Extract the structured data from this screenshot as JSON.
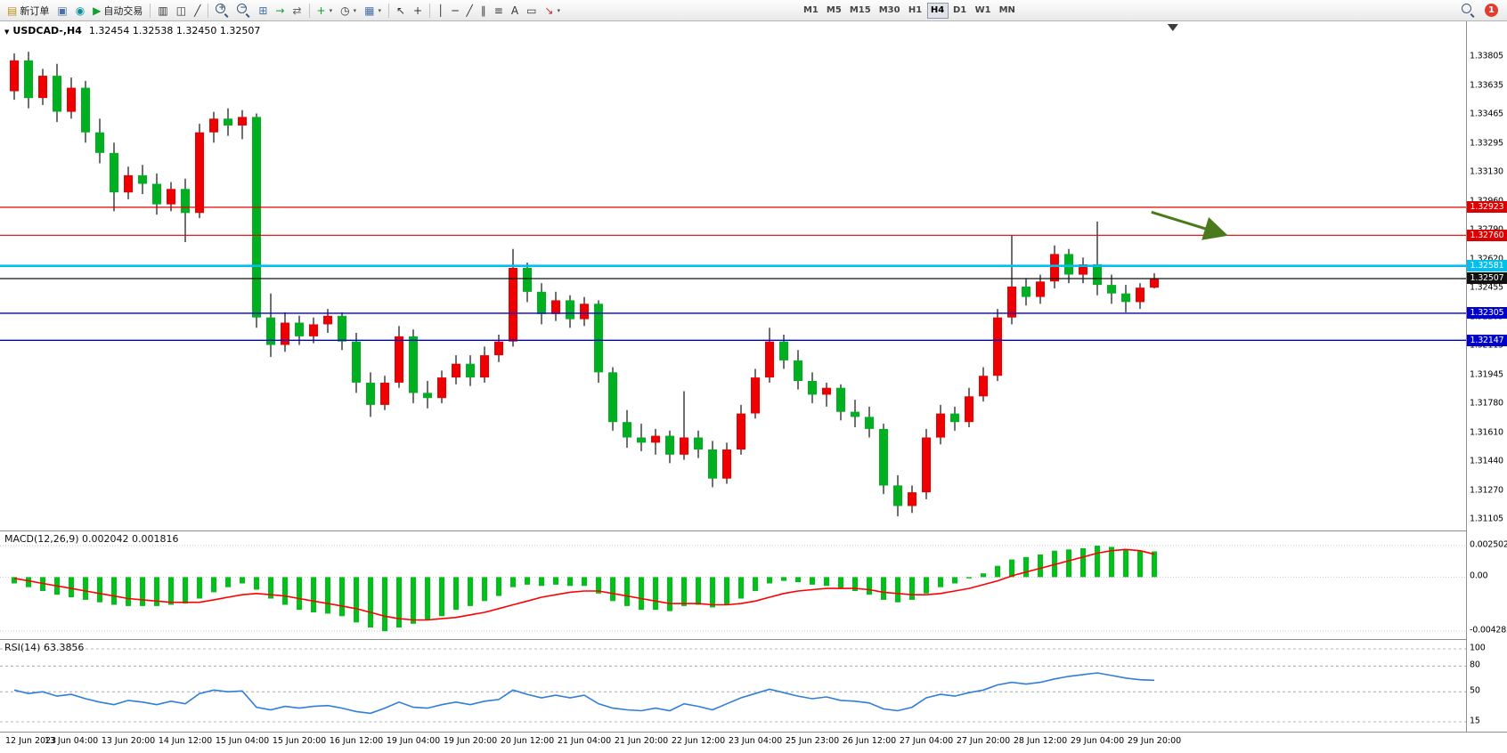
{
  "toolbar": {
    "notification_count": "1",
    "items": [
      {
        "type": "button",
        "name": "new-order-button",
        "icon": "new-order-icon",
        "glyph": "▤",
        "color": "#b8931f",
        "label": "新订单"
      },
      {
        "type": "button",
        "name": "chart-window-button",
        "icon": "chart-window-icon",
        "glyph": "▣",
        "color": "#4a6fa5"
      },
      {
        "type": "button",
        "name": "community-button",
        "icon": "community-icon",
        "glyph": "◉",
        "color": "#0a8f9c"
      },
      {
        "type": "button",
        "name": "auto-trading-button",
        "icon": "auto-trading-icon",
        "glyph": "▶",
        "color": "#11a12c",
        "label": "自动交易"
      },
      {
        "type": "sep"
      },
      {
        "type": "button",
        "name": "bar-chart-button",
        "icon": "bar-chart-icon",
        "glyph": "▥",
        "color": "#333333"
      },
      {
        "type": "button",
        "name": "candlestick-chart-button",
        "icon": "candlestick-chart-icon",
        "glyph": "◫",
        "color": "#333333"
      },
      {
        "type": "button",
        "name": "line-chart-button",
        "icon": "line-chart-icon",
        "glyph": "╱",
        "color": "#333333"
      },
      {
        "type": "sep"
      },
      {
        "type": "button",
        "name": "zoom-in-button",
        "icon": "zoom-in-icon",
        "css": "mag",
        "glyph": "+"
      },
      {
        "type": "button",
        "name": "zoom-out-button",
        "icon": "zoom-out-icon",
        "css": "mag",
        "glyph": "−"
      },
      {
        "type": "button",
        "name": "tile-windows-button",
        "icon": "tile-windows-icon",
        "glyph": "⊞",
        "color": "#4a6fa5"
      },
      {
        "type": "button",
        "name": "auto-scroll-button",
        "icon": "auto-scroll-icon",
        "glyph": "→",
        "color": "#11a12c"
      },
      {
        "type": "button",
        "name": "chart-shift-button",
        "icon": "chart-shift-icon",
        "glyph": "⇄",
        "color": "#666666"
      },
      {
        "type": "sep"
      },
      {
        "type": "button",
        "name": "indicators-button",
        "icon": "indicators-icon",
        "glyph": "+",
        "color": "#0f9d20",
        "caret": true
      },
      {
        "type": "button",
        "name": "periods-button",
        "icon": "periods-icon",
        "glyph": "◷",
        "color": "#333333",
        "caret": true
      },
      {
        "type": "button",
        "name": "templates-button",
        "icon": "templates-icon",
        "glyph": "▦",
        "color": "#4a6fa5",
        "caret": true
      },
      {
        "type": "sep"
      },
      {
        "type": "button",
        "name": "cursor-button",
        "icon": "cursor-icon",
        "glyph": "↖",
        "color": "#333333"
      },
      {
        "type": "button",
        "name": "crosshair-button",
        "icon": "crosshair-icon",
        "glyph": "+",
        "color": "#333333"
      },
      {
        "type": "sep"
      },
      {
        "type": "button",
        "name": "vertical-line-button",
        "icon": "vertical-line-icon",
        "glyph": "│",
        "color": "#333333"
      },
      {
        "type": "button",
        "name": "horizontal-line-button",
        "icon": "horizontal-line-icon",
        "glyph": "─",
        "color": "#333333"
      },
      {
        "type": "button",
        "name": "trendline-button",
        "icon": "trendline-icon",
        "glyph": "╱",
        "color": "#333333"
      },
      {
        "type": "button",
        "name": "channel-button",
        "icon": "channel-icon",
        "glyph": "∥",
        "color": "#333333"
      },
      {
        "type": "button",
        "name": "fibonacci-button",
        "icon": "fibonacci-icon",
        "glyph": "≡",
        "color": "#333333"
      },
      {
        "type": "button",
        "name": "text-button",
        "icon": "text-icon",
        "glyph": "A",
        "color": "#333333"
      },
      {
        "type": "button",
        "name": "label-button",
        "icon": "label-icon",
        "glyph": "▭",
        "color": "#333333"
      },
      {
        "type": "button",
        "name": "arrows-button",
        "icon": "arrows-icon",
        "glyph": "↘",
        "color": "#c03030",
        "caret": true
      }
    ],
    "timeframes": [
      {
        "label": "M1"
      },
      {
        "label": "M5"
      },
      {
        "label": "M15"
      },
      {
        "label": "M30"
      },
      {
        "label": "H1"
      },
      {
        "label": "H4",
        "active": true
      },
      {
        "label": "D1"
      },
      {
        "label": "W1"
      },
      {
        "label": "MN"
      }
    ]
  },
  "chart_data": [
    {
      "type": "candlestick",
      "symbol_label": "USDCAD-,H4",
      "ohlc": "1.32454 1.32538 1.32450 1.32507",
      "up_color": "#ee0000",
      "down_color": "#00b020",
      "wick_color": "#222222",
      "price_ticks": [
        "1.33805",
        "1.33635",
        "1.33465",
        "1.33295",
        "1.33130",
        "1.32960",
        "1.32790",
        "1.32620",
        "1.32455",
        "1.32285",
        "1.32115",
        "1.31945",
        "1.31780",
        "1.31610",
        "1.31440",
        "1.31270",
        "1.31105"
      ],
      "hlines": [
        {
          "value": 1.32923,
          "color": "#dd0000",
          "width": 1.2
        },
        {
          "value": 1.3276,
          "color": "#dd0000",
          "width": 1.2
        },
        {
          "value": 1.32581,
          "color": "#00bfef",
          "width": 2.6
        },
        {
          "value": 1.32507,
          "color": "#111111",
          "width": 1.2
        },
        {
          "value": 1.32305,
          "color": "#0000cc",
          "width": 1.4
        },
        {
          "value": 1.32147,
          "color": "#0000cc",
          "width": 1.4
        }
      ],
      "arrow": {
        "from_bar": 79.8,
        "from_price": 1.32895,
        "to_bar": 85.0,
        "to_price": 1.32762,
        "color": "#4a7a1c"
      },
      "shift_marker_bar": 81.3,
      "bars_per_label": 4,
      "x_labels": [
        "12 Jun 2023",
        "13 Jun 04:00",
        "13 Jun 20:00",
        "14 Jun 12:00",
        "15 Jun 04:00",
        "15 Jun 20:00",
        "16 Jun 12:00",
        "19 Jun 04:00",
        "19 Jun 20:00",
        "20 Jun 12:00",
        "21 Jun 04:00",
        "21 Jun 20:00",
        "22 Jun 12:00",
        "23 Jun 04:00",
        "25 Jun 23:00",
        "26 Jun 12:00",
        "27 Jun 04:00",
        "27 Jun 20:00",
        "28 Jun 12:00",
        "29 Jun 04:00",
        "29 Jun 20:00"
      ],
      "candles": [
        [
          1.336,
          1.3382,
          1.3355,
          1.3378
        ],
        [
          1.3378,
          1.3383,
          1.335,
          1.3356
        ],
        [
          1.3356,
          1.3373,
          1.3352,
          1.3369
        ],
        [
          1.3369,
          1.3376,
          1.3342,
          1.3348
        ],
        [
          1.3348,
          1.3368,
          1.3344,
          1.3362
        ],
        [
          1.3362,
          1.3366,
          1.333,
          1.3336
        ],
        [
          1.3336,
          1.3344,
          1.3318,
          1.3324
        ],
        [
          1.3324,
          1.333,
          1.329,
          1.3301
        ],
        [
          1.3301,
          1.3316,
          1.3297,
          1.3311
        ],
        [
          1.3311,
          1.3317,
          1.33,
          1.3306
        ],
        [
          1.3306,
          1.3312,
          1.3288,
          1.3294
        ],
        [
          1.3294,
          1.3307,
          1.329,
          1.3303
        ],
        [
          1.3303,
          1.3309,
          1.3272,
          1.3289
        ],
        [
          1.3289,
          1.3341,
          1.3286,
          1.3336
        ],
        [
          1.3336,
          1.3348,
          1.333,
          1.3344
        ],
        [
          1.3344,
          1.335,
          1.3334,
          1.334
        ],
        [
          1.334,
          1.3349,
          1.3332,
          1.3345
        ],
        [
          1.3345,
          1.3347,
          1.3222,
          1.3228
        ],
        [
          1.3228,
          1.3242,
          1.3205,
          1.3212
        ],
        [
          1.3212,
          1.3231,
          1.3208,
          1.3225
        ],
        [
          1.3225,
          1.3229,
          1.3212,
          1.3217
        ],
        [
          1.3217,
          1.3228,
          1.3213,
          1.3224
        ],
        [
          1.3224,
          1.3233,
          1.3219,
          1.3229
        ],
        [
          1.3229,
          1.3231,
          1.3209,
          1.3214
        ],
        [
          1.3214,
          1.3219,
          1.3184,
          1.319
        ],
        [
          1.319,
          1.3196,
          1.317,
          1.3177
        ],
        [
          1.3177,
          1.3194,
          1.3174,
          1.319
        ],
        [
          1.319,
          1.3223,
          1.3187,
          1.3217
        ],
        [
          1.3217,
          1.3221,
          1.3178,
          1.3184
        ],
        [
          1.3184,
          1.3191,
          1.3175,
          1.3181
        ],
        [
          1.3181,
          1.3197,
          1.3178,
          1.3193
        ],
        [
          1.3193,
          1.3206,
          1.3189,
          1.3201
        ],
        [
          1.3201,
          1.3206,
          1.3188,
          1.3193
        ],
        [
          1.3193,
          1.3211,
          1.319,
          1.3206
        ],
        [
          1.3206,
          1.3218,
          1.3202,
          1.3214
        ],
        [
          1.3214,
          1.3268,
          1.3211,
          1.3257
        ],
        [
          1.3257,
          1.326,
          1.3237,
          1.3243
        ],
        [
          1.3243,
          1.3248,
          1.3224,
          1.323
        ],
        [
          1.323,
          1.3243,
          1.3226,
          1.3238
        ],
        [
          1.3238,
          1.3241,
          1.3222,
          1.3227
        ],
        [
          1.3227,
          1.324,
          1.3223,
          1.3236
        ],
        [
          1.3236,
          1.3238,
          1.319,
          1.3196
        ],
        [
          1.3196,
          1.3199,
          1.3162,
          1.3167
        ],
        [
          1.3167,
          1.3174,
          1.3152,
          1.3158
        ],
        [
          1.3158,
          1.3166,
          1.315,
          1.3155
        ],
        [
          1.3155,
          1.3163,
          1.3148,
          1.3159
        ],
        [
          1.3159,
          1.3162,
          1.3143,
          1.3148
        ],
        [
          1.3148,
          1.3185,
          1.3145,
          1.3158
        ],
        [
          1.3158,
          1.3162,
          1.3146,
          1.3151
        ],
        [
          1.3151,
          1.3156,
          1.3129,
          1.3134
        ],
        [
          1.3134,
          1.3155,
          1.3131,
          1.3151
        ],
        [
          1.3151,
          1.3177,
          1.3148,
          1.3172
        ],
        [
          1.3172,
          1.3198,
          1.3169,
          1.3193
        ],
        [
          1.3193,
          1.3222,
          1.319,
          1.3214
        ],
        [
          1.3214,
          1.3218,
          1.3198,
          1.3203
        ],
        [
          1.3203,
          1.3209,
          1.3186,
          1.3191
        ],
        [
          1.3191,
          1.3196,
          1.3178,
          1.3183
        ],
        [
          1.3183,
          1.319,
          1.3176,
          1.3187
        ],
        [
          1.3187,
          1.3189,
          1.3168,
          1.3173
        ],
        [
          1.3173,
          1.318,
          1.3164,
          1.317
        ],
        [
          1.317,
          1.3176,
          1.3158,
          1.3163
        ],
        [
          1.3163,
          1.3166,
          1.3125,
          1.313
        ],
        [
          1.313,
          1.3136,
          1.3112,
          1.3118
        ],
        [
          1.3118,
          1.313,
          1.3114,
          1.3126
        ],
        [
          1.3126,
          1.3163,
          1.3122,
          1.3158
        ],
        [
          1.3158,
          1.3177,
          1.3154,
          1.3172
        ],
        [
          1.3172,
          1.3176,
          1.3162,
          1.3167
        ],
        [
          1.3167,
          1.3187,
          1.3164,
          1.3182
        ],
        [
          1.3182,
          1.3199,
          1.3179,
          1.3194
        ],
        [
          1.3194,
          1.3233,
          1.3191,
          1.3228
        ],
        [
          1.3228,
          1.3276,
          1.3224,
          1.3246
        ],
        [
          1.3246,
          1.3251,
          1.3235,
          1.324
        ],
        [
          1.324,
          1.3253,
          1.3236,
          1.3249
        ],
        [
          1.3249,
          1.327,
          1.3245,
          1.3265
        ],
        [
          1.3265,
          1.3268,
          1.3248,
          1.3253
        ],
        [
          1.3253,
          1.3263,
          1.3248,
          1.3259
        ],
        [
          1.3259,
          1.3284,
          1.3241,
          1.3247
        ],
        [
          1.3247,
          1.3253,
          1.3236,
          1.3242
        ],
        [
          1.3242,
          1.3247,
          1.3231,
          1.3237
        ],
        [
          1.3237,
          1.3248,
          1.3233,
          1.32454
        ],
        [
          1.32454,
          1.32538,
          1.3245,
          1.32507
        ]
      ]
    },
    {
      "type": "bar",
      "label": "MACD(12,26,9) 0.002042 0.001816",
      "ticks": [
        "0.002502",
        "0.00",
        "-0.004283"
      ],
      "tick_values": [
        0.002502,
        0,
        -0.004283
      ],
      "hist_color": "#00c019",
      "signal_color": "#ff0000",
      "histogram": [
        -0.0005,
        -0.0008,
        -0.0011,
        -0.0014,
        -0.0016,
        -0.0018,
        -0.002,
        -0.0022,
        -0.0023,
        -0.0023,
        -0.0023,
        -0.0022,
        -0.0021,
        -0.0017,
        -0.0012,
        -0.0008,
        -0.0005,
        -0.001,
        -0.0017,
        -0.0022,
        -0.0026,
        -0.0028,
        -0.0029,
        -0.0031,
        -0.0036,
        -0.004,
        -0.0043,
        -0.004,
        -0.0037,
        -0.0034,
        -0.0031,
        -0.0026,
        -0.0023,
        -0.0019,
        -0.0015,
        -0.0008,
        -0.0006,
        -0.0007,
        -0.0006,
        -0.0007,
        -0.0007,
        -0.0013,
        -0.0019,
        -0.0023,
        -0.0026,
        -0.0026,
        -0.0027,
        -0.0023,
        -0.0022,
        -0.0024,
        -0.0022,
        -0.0017,
        -0.0011,
        -0.0005,
        -0.0003,
        -0.0004,
        -0.0006,
        -0.0007,
        -0.0009,
        -0.0011,
        -0.0014,
        -0.0018,
        -0.002,
        -0.0018,
        -0.0013,
        -0.0008,
        -0.0005,
        -0.0001,
        0.0003,
        0.0009,
        0.0014,
        0.0016,
        0.0018,
        0.0021,
        0.0022,
        0.0023,
        0.0025,
        0.0024,
        0.0022,
        0.0021,
        0.002042
      ],
      "signal": [
        -0.0001,
        -0.0003,
        -0.0005,
        -0.0007,
        -0.0009,
        -0.0011,
        -0.0013,
        -0.0015,
        -0.0017,
        -0.0018,
        -0.0019,
        -0.002,
        -0.002,
        -0.002,
        -0.0018,
        -0.0016,
        -0.0014,
        -0.0013,
        -0.0014,
        -0.0015,
        -0.0017,
        -0.0019,
        -0.0021,
        -0.0023,
        -0.0025,
        -0.0028,
        -0.0031,
        -0.0033,
        -0.0034,
        -0.0034,
        -0.0033,
        -0.0032,
        -0.003,
        -0.0028,
        -0.0025,
        -0.0022,
        -0.0019,
        -0.0016,
        -0.0014,
        -0.0012,
        -0.0011,
        -0.0011,
        -0.0013,
        -0.0015,
        -0.0017,
        -0.0019,
        -0.0021,
        -0.0021,
        -0.0021,
        -0.0022,
        -0.0022,
        -0.0021,
        -0.0019,
        -0.0016,
        -0.0013,
        -0.0011,
        -0.001,
        -0.0009,
        -0.0009,
        -0.0009,
        -0.001,
        -0.0012,
        -0.0013,
        -0.0014,
        -0.0014,
        -0.0013,
        -0.0011,
        -0.0009,
        -0.0006,
        -0.0003,
        0.0001,
        0.0004,
        0.0007,
        0.001,
        0.0013,
        0.0016,
        0.0019,
        0.0021,
        0.0022,
        0.0021,
        0.001816
      ]
    },
    {
      "type": "line",
      "label": "RSI(14) 63.3856",
      "ticks": [
        "100",
        "80",
        "50",
        "15"
      ],
      "tick_values": [
        100,
        80,
        50,
        15
      ],
      "levels": [
        100,
        80,
        50,
        15
      ],
      "color": "#2f7ed8",
      "values": [
        52,
        48,
        50,
        45,
        47,
        42,
        38,
        35,
        40,
        38,
        35,
        39,
        36,
        48,
        52,
        50,
        51,
        32,
        29,
        33,
        31,
        33,
        34,
        31,
        27,
        25,
        31,
        38,
        32,
        31,
        35,
        38,
        35,
        39,
        41,
        52,
        47,
        43,
        46,
        43,
        46,
        36,
        31,
        29,
        28,
        31,
        28,
        36,
        33,
        29,
        36,
        43,
        48,
        53,
        49,
        45,
        42,
        44,
        40,
        39,
        37,
        30,
        28,
        32,
        43,
        47,
        45,
        49,
        52,
        58,
        61,
        59,
        61,
        65,
        68,
        70,
        72,
        69,
        66,
        64,
        63.39
      ]
    }
  ]
}
